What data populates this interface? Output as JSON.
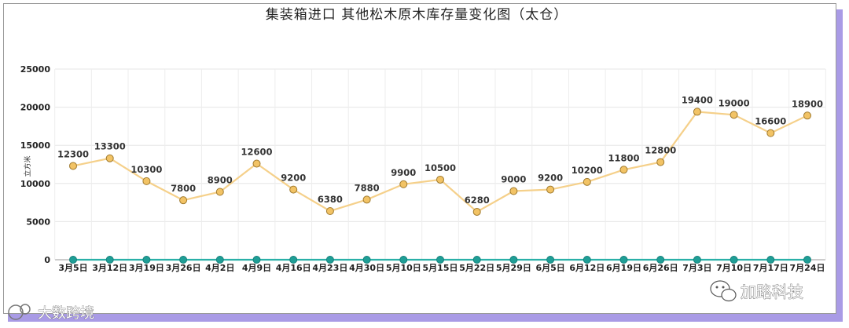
{
  "chart_data": {
    "type": "line",
    "title": "集装箱进口  其他松木原木库存量变化图（太仓）",
    "ylabel": "立方米",
    "xlabel": "",
    "categories": [
      "3月5日",
      "3月12日",
      "3月19日",
      "3月26日",
      "4月2日",
      "4月9日",
      "4月16日",
      "4月23日",
      "4月30日",
      "5月10日",
      "5月15日",
      "5月22日",
      "5月29日",
      "6月5日",
      "6月12日",
      "6月19日",
      "6月26日",
      "7月3日",
      "7月10日",
      "7月17日",
      "7月24日"
    ],
    "ylim": [
      0,
      25000
    ],
    "yticks": [
      0,
      5000,
      10000,
      15000,
      20000,
      25000
    ],
    "grid": true,
    "series": [
      {
        "color": "#f5d08a",
        "marker_color": "#f2c365",
        "values": [
          12300,
          13300,
          10300,
          7800,
          8900,
          12600,
          9200,
          6380,
          7880,
          9900,
          10500,
          6280,
          9000,
          9200,
          10200,
          11800,
          12800,
          19400,
          19000,
          16600,
          18900
        ],
        "show_labels": true
      },
      {
        "color": "#2ab0a8",
        "marker_color": "#1f9e96",
        "values": [
          0,
          0,
          0,
          0,
          0,
          0,
          0,
          0,
          0,
          0,
          0,
          0,
          0,
          0,
          0,
          0,
          0,
          0,
          0,
          0,
          0
        ],
        "show_labels": false
      }
    ]
  },
  "watermarks": {
    "left": "大数跨境",
    "right": "加路科技"
  }
}
